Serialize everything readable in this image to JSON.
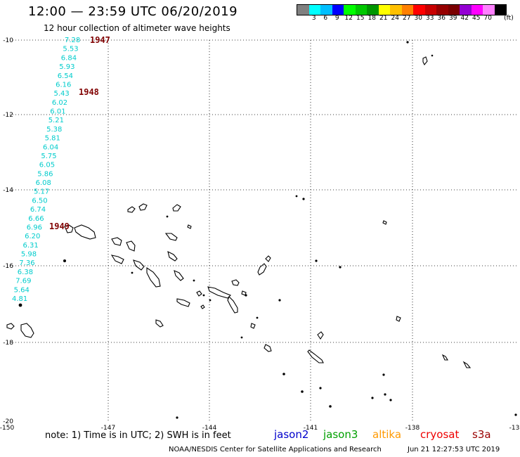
{
  "header": {
    "title": "12:00 — 23:59 UTC 06/20/2019",
    "subtitle": "12 hour collection of altimeter wave heights"
  },
  "legend": {
    "unit": "(ft)",
    "colors": [
      "#808080",
      "#00ffff",
      "#00bfff",
      "#0000ff",
      "#00ff00",
      "#00c800",
      "#009600",
      "#ffff00",
      "#ffc000",
      "#ff8000",
      "#ff0000",
      "#c80000",
      "#960000",
      "#7a0000",
      "#9400d3",
      "#ff00ff",
      "#ff80ff",
      "#000000"
    ],
    "labels": [
      "3",
      "6",
      "9",
      "12",
      "15",
      "18",
      "21",
      "24",
      "27",
      "30",
      "33",
      "36",
      "39",
      "42",
      "45",
      "70"
    ]
  },
  "axes": {
    "lon_ticks": [
      "-150",
      "-147",
      "-144",
      "-141",
      "-138",
      "-13"
    ],
    "lat_ticks": [
      "-10",
      "-12",
      "-14",
      "-16",
      "-18",
      "-20"
    ]
  },
  "track": {
    "color": "#00cccc",
    "values": [
      "7.28",
      "5.53",
      "6.84",
      "5.93",
      "6.54",
      "6.16",
      "5.43",
      "6.02",
      "6.01",
      "5.21",
      "5.38",
      "5.81",
      "6.04",
      "5.75",
      "6.05",
      "5.86",
      "6.08",
      "5.17",
      "6.50",
      "6.74",
      "6.66",
      "6.96",
      "6.20",
      "6.31",
      "5.98",
      "7.36",
      "6.38",
      "7.69",
      "5.64",
      "4.81"
    ]
  },
  "time_labels": [
    {
      "text": "1947",
      "color": "#800000"
    },
    {
      "text": "1948",
      "color": "#800000"
    },
    {
      "text": "1949",
      "color": "#800000"
    }
  ],
  "footer": {
    "note": "note:  1) Time is in UTC;  2) SWH is in feet",
    "satellites": [
      {
        "name": "jason2",
        "color": "#0000cc"
      },
      {
        "name": "jason3",
        "color": "#00a000"
      },
      {
        "name": "altika",
        "color": "#ff9900"
      },
      {
        "name": "cryosat",
        "color": "#ee0000"
      },
      {
        "name": "s3a",
        "color": "#990000"
      }
    ],
    "credit": "NOAA/NESDIS Center for Satellite Applications and Research",
    "timestamp": "Jun 21 12:27:53 UTC 2019"
  }
}
